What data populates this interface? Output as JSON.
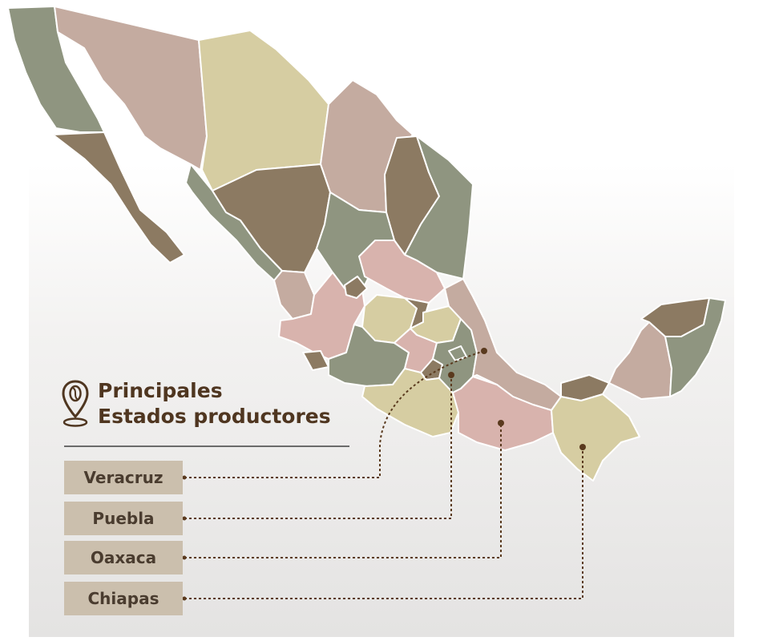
{
  "legend": {
    "title_line1": "Principales",
    "title_line2": "Estados productores",
    "icon": "map-pin-coffee-bean-icon"
  },
  "producer_states": [
    {
      "name": "Veracruz"
    },
    {
      "name": "Puebla"
    },
    {
      "name": "Oaxaca"
    },
    {
      "name": "Chiapas"
    }
  ],
  "colors": {
    "title": "#4f3620",
    "label_bg": "#cbbfad",
    "label_text": "#4a3c2f",
    "leader_line": "#5a3a1e",
    "state_sage": "#8f9580",
    "state_rose": "#c4aba0",
    "state_cream": "#d6cda2",
    "state_brown": "#8c7a62",
    "state_pink": "#d8b3ad"
  }
}
